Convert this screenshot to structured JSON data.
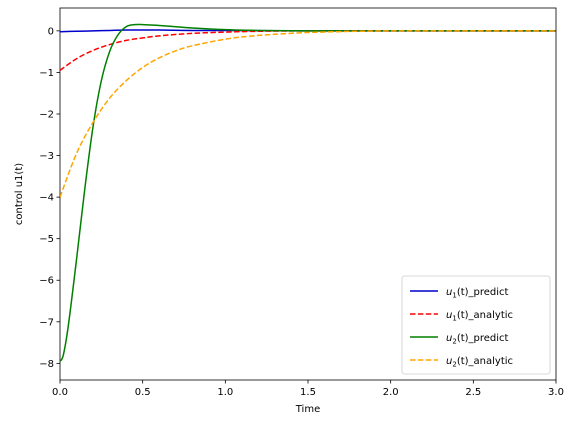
{
  "chart_data": {
    "type": "line",
    "xlabel": "Time",
    "ylabel": "control u1(t)",
    "xlim": [
      0,
      3
    ],
    "ylim": [
      -8.4,
      0.55
    ],
    "xticks": [
      0.0,
      0.5,
      1.0,
      1.5,
      2.0,
      2.5,
      3.0
    ],
    "xtick_labels": [
      "0.0",
      "0.5",
      "1.0",
      "1.5",
      "2.0",
      "2.5",
      "3.0"
    ],
    "yticks": [
      0,
      -1,
      -2,
      -3,
      -4,
      -5,
      -6,
      -7,
      -8
    ],
    "ytick_labels": [
      "0",
      "−1",
      "−2",
      "−3",
      "−4",
      "−5",
      "−6",
      "−7",
      "−8"
    ],
    "grid": false,
    "legend_position": "bottom-right",
    "series": [
      {
        "name_symbol": "u",
        "name_subscript": "1",
        "name_suffix": "(t)_predict",
        "color": "#0000cc",
        "style": "solid",
        "x": [
          0.0,
          0.1,
          0.2,
          0.3,
          0.4,
          0.5,
          0.6,
          0.8,
          1.0,
          1.5,
          2.0,
          2.5,
          3.0
        ],
        "y": [
          -0.02,
          -0.01,
          0.0,
          0.01,
          0.02,
          0.02,
          0.02,
          0.01,
          0.01,
          0.0,
          0.0,
          0.0,
          0.0
        ]
      },
      {
        "name_symbol": "u",
        "name_subscript": "1",
        "name_suffix": "(t)_analytic",
        "color": "#ff0000",
        "style": "dashed",
        "x": [
          0.0,
          0.1,
          0.2,
          0.3,
          0.4,
          0.5,
          0.6,
          0.8,
          1.0,
          1.2,
          1.5,
          2.0,
          2.5,
          3.0
        ],
        "y": [
          -0.95,
          -0.67,
          -0.47,
          -0.33,
          -0.23,
          -0.17,
          -0.12,
          -0.06,
          -0.03,
          -0.01,
          0.0,
          0.0,
          0.0,
          0.0
        ]
      },
      {
        "name_symbol": "u",
        "name_subscript": "2",
        "name_suffix": "(t)_predict",
        "color": "#008000",
        "style": "solid",
        "x": [
          0.0,
          0.02,
          0.05,
          0.1,
          0.15,
          0.2,
          0.25,
          0.3,
          0.35,
          0.4,
          0.45,
          0.5,
          0.55,
          0.6,
          0.7,
          0.8,
          1.0,
          1.2,
          1.5,
          2.0,
          2.5,
          3.0
        ],
        "y": [
          -7.95,
          -7.8,
          -7.1,
          -5.5,
          -3.8,
          -2.3,
          -1.2,
          -0.5,
          -0.1,
          0.1,
          0.15,
          0.15,
          0.14,
          0.13,
          0.1,
          0.07,
          0.03,
          0.01,
          0.0,
          0.0,
          0.0,
          0.0
        ]
      },
      {
        "name_symbol": "u",
        "name_subscript": "2",
        "name_suffix": "(t)_analytic",
        "color": "#ffa500",
        "style": "dashed",
        "x": [
          0.0,
          0.1,
          0.2,
          0.3,
          0.4,
          0.5,
          0.6,
          0.7,
          0.8,
          1.0,
          1.2,
          1.5,
          1.8,
          2.0,
          2.5,
          3.0
        ],
        "y": [
          -4.0,
          -2.95,
          -2.2,
          -1.62,
          -1.2,
          -0.88,
          -0.65,
          -0.48,
          -0.36,
          -0.2,
          -0.11,
          -0.04,
          -0.01,
          0.0,
          0.0,
          0.0
        ]
      }
    ]
  }
}
